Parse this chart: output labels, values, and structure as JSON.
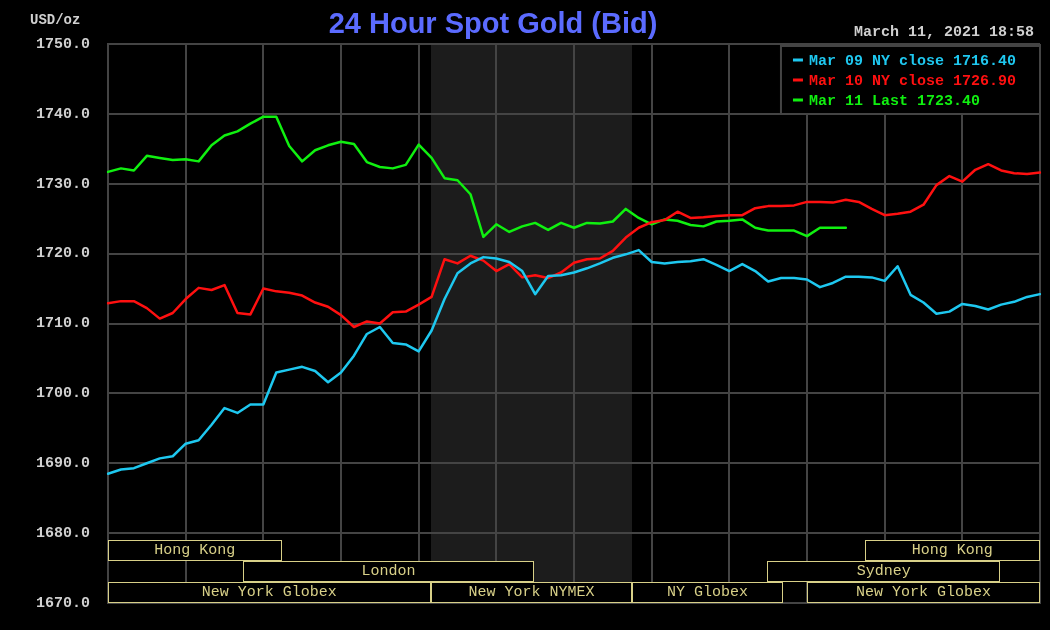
{
  "chart_data": {
    "type": "line",
    "title": "24 Hour Spot Gold (Bid)",
    "ylabel": "USD/oz",
    "annotations": [
      "March 11, 2021 18:58",
      "Hong Kong",
      "Hong Kong",
      "London",
      "Sydney",
      "New York Globex",
      "New York NYMEX",
      "NY Globex",
      "New York Globex"
    ],
    "categories": [
      null,
      null,
      null,
      null,
      null,
      null,
      null,
      null,
      null,
      null,
      null,
      null,
      null,
      null,
      null,
      null,
      null,
      null,
      null,
      null,
      null,
      null,
      null,
      null,
      null,
      null,
      null,
      null,
      null,
      null,
      null,
      null,
      null,
      null,
      null,
      null,
      null,
      null,
      null,
      null,
      null,
      null,
      null,
      null,
      null,
      null,
      null,
      null,
      null,
      null,
      null,
      null,
      null,
      null,
      null,
      null,
      null,
      null,
      null,
      null,
      null,
      null,
      null,
      null,
      null,
      null,
      null,
      null,
      null,
      null,
      null,
      null,
      null
    ],
    "ylim": [
      1670,
      1750
    ],
    "yticks": [
      {
        "value": 1670,
        "label": "1670.0"
      },
      {
        "value": 1680,
        "label": "1680.0"
      },
      {
        "value": 1690,
        "label": "1690.0"
      },
      {
        "value": 1700,
        "label": "1700.0"
      },
      {
        "value": 1710,
        "label": "1710.0"
      },
      {
        "value": 1720,
        "label": "1720.0"
      },
      {
        "value": 1730,
        "label": "1730.0"
      },
      {
        "value": 1740,
        "label": "1740.0"
      },
      {
        "value": 1750,
        "label": "1750.0"
      }
    ],
    "tick_labels": "y",
    "grid": true,
    "legend": "top right",
    "marker": "none",
    "line_style": "solid",
    "series": [
      {
        "name": "Mar 09 NY close 1716.40",
        "color": "#1ec8f0",
        "values": [
          1688.5,
          1689.1,
          1689.3,
          1690,
          1690.7,
          1691,
          1692.8,
          1693.3,
          1695.5,
          1697.9,
          1697.2,
          1698.4,
          1698.4,
          1703,
          1703.4,
          1703.8,
          1703.2,
          1701.6,
          1703,
          1705.4,
          1708.5,
          1709.5,
          1707.2,
          1707,
          1706,
          1709,
          1713.5,
          1717.2,
          1718.6,
          1719.5,
          1719.3,
          1718.8,
          1717.5,
          1714.2,
          1716.8,
          1716.9,
          1717.3,
          1717.9,
          1718.6,
          1719.4,
          1719.9,
          1720.5,
          1718.8,
          1718.6,
          1718.8,
          1718.9,
          1719.2,
          1718.4,
          1717.5,
          1718.5,
          1717.5,
          1716,
          1716.5,
          1716.5,
          1716.3,
          1715.2,
          1715.8,
          1716.7,
          1716.7,
          1716.6,
          1716.1,
          1718.2,
          1714.1,
          1713,
          1711.4,
          1711.7,
          1712.8,
          1712.5,
          1712,
          1712.7,
          1713.1,
          1713.8,
          1714.2
        ]
      },
      {
        "name": "Mar 10 NY close 1726.90",
        "color": "#ff1010",
        "values": [
          1712.9,
          1713.2,
          1713.2,
          1712.2,
          1710.7,
          1711.5,
          1713.5,
          1715.1,
          1714.8,
          1715.5,
          1711.5,
          1711.3,
          1715,
          1714.6,
          1714.4,
          1714,
          1713,
          1712.4,
          1711.2,
          1709.5,
          1710.3,
          1710,
          1711.6,
          1711.7,
          1712.7,
          1713.8,
          1719.2,
          1718.6,
          1719.7,
          1719,
          1717.5,
          1718.5,
          1716.6,
          1716.9,
          1716.5,
          1717.3,
          1718.7,
          1719.2,
          1719.3,
          1720.4,
          1722.3,
          1723.7,
          1724.5,
          1724.8,
          1726,
          1725.1,
          1725.2,
          1725.4,
          1725.5,
          1725.5,
          1726.5,
          1726.8,
          1726.8,
          1726.9,
          1727.4,
          1727.4,
          1727.3,
          1727.7,
          1727.4,
          1726.4,
          1725.5,
          1725.7,
          1726,
          1727,
          1729.8,
          1731.1,
          1730.3,
          1732,
          1732.8,
          1731.9,
          1731.5,
          1731.4,
          1731.6
        ]
      },
      {
        "name": "Mar 11 Last 1723.40",
        "color": "#10f010",
        "values": [
          1731.7,
          1732.2,
          1731.9,
          1734,
          1733.7,
          1733.4,
          1733.5,
          1733.2,
          1735.5,
          1736.9,
          1737.5,
          1738.6,
          1739.6,
          1739.6,
          1735.4,
          1733.2,
          1734.8,
          1735.5,
          1736,
          1735.7,
          1733.1,
          1732.4,
          1732.2,
          1732.7,
          1735.6,
          1733.7,
          1730.8,
          1730.5,
          1728.5,
          1722.4,
          1724.2,
          1723.1,
          1723.9,
          1724.4,
          1723.4,
          1724.4,
          1723.7,
          1724.4,
          1724.3,
          1724.6,
          1726.4,
          1725.1,
          1724.2,
          1724.9,
          1724.7,
          1724.1,
          1723.9,
          1724.6,
          1724.7,
          1724.9,
          1723.7,
          1723.3,
          1723.3,
          1723.3,
          1722.5,
          1723.7,
          1723.7,
          1723.7,
          null,
          null,
          null,
          null,
          null,
          null,
          null,
          null,
          null,
          null,
          null,
          null,
          null,
          null,
          null
        ]
      }
    ]
  }
}
